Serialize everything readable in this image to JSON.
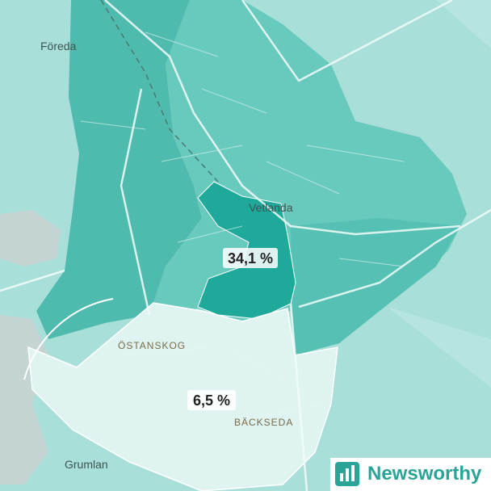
{
  "map": {
    "places": [
      "Föreda",
      "Vetlanda",
      "ÖSTANSKOG",
      "BÄCKSEDA",
      "Grumlan"
    ],
    "regions": [
      {
        "value_label": "34,1 %"
      },
      {
        "value_label": "6,5 %"
      }
    ],
    "brand": "Newsworthy"
  }
}
